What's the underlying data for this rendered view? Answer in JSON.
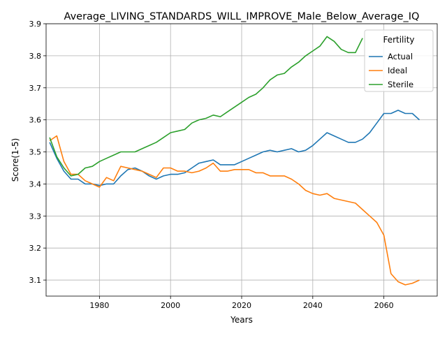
{
  "chart_data": {
    "type": "line",
    "title": "Average_LIVING_STANDARDS_WILL_IMPROVE_Male_Below_Average_IQ",
    "xlabel": "Years",
    "ylabel": "Score(1-5)",
    "xlim": [
      1965,
      2075
    ],
    "ylim": [
      3.05,
      3.9
    ],
    "xticks": [
      1980,
      2000,
      2020,
      2040,
      2060
    ],
    "yticks": [
      3.1,
      3.2,
      3.3,
      3.4,
      3.5,
      3.6,
      3.7,
      3.8,
      3.9
    ],
    "grid": true,
    "legend": {
      "title": "Fertility",
      "placement": "top-right"
    },
    "colors": {
      "Actual": "#1f77b4",
      "Ideal": "#ff7f0e",
      "Sterile": "#2ca02c"
    },
    "x": [
      1966,
      1968,
      1970,
      1972,
      1974,
      1976,
      1978,
      1980,
      1982,
      1984,
      1986,
      1988,
      1990,
      1992,
      1994,
      1996,
      1998,
      2000,
      2002,
      2004,
      2006,
      2008,
      2010,
      2012,
      2014,
      2016,
      2018,
      2020,
      2022,
      2024,
      2026,
      2028,
      2030,
      2032,
      2034,
      2036,
      2038,
      2040,
      2042,
      2044,
      2046,
      2048,
      2050,
      2052,
      2054,
      2056,
      2058,
      2060,
      2062,
      2064,
      2066,
      2068,
      2070
    ],
    "series": [
      {
        "name": "Actual",
        "values": [
          3.53,
          3.48,
          3.44,
          3.415,
          3.415,
          3.4,
          3.4,
          3.395,
          3.4,
          3.4,
          3.425,
          3.445,
          3.45,
          3.44,
          3.425,
          3.415,
          3.425,
          3.43,
          3.43,
          3.435,
          3.45,
          3.465,
          3.47,
          3.475,
          3.46,
          3.46,
          3.46,
          3.47,
          3.48,
          3.49,
          3.5,
          3.505,
          3.5,
          3.505,
          3.51,
          3.5,
          3.505,
          3.52,
          3.54,
          3.56,
          3.55,
          3.54,
          3.53,
          3.53,
          3.54,
          3.56,
          3.59,
          3.62,
          3.62,
          3.63,
          3.62,
          3.62,
          3.6
        ]
      },
      {
        "name": "Ideal",
        "values": [
          3.535,
          3.55,
          3.47,
          3.43,
          3.43,
          3.41,
          3.4,
          3.39,
          3.42,
          3.41,
          3.455,
          3.45,
          3.445,
          3.44,
          3.43,
          3.42,
          3.45,
          3.45,
          3.44,
          3.44,
          3.435,
          3.44,
          3.45,
          3.465,
          3.44,
          3.44,
          3.445,
          3.445,
          3.445,
          3.435,
          3.435,
          3.425,
          3.425,
          3.425,
          3.415,
          3.4,
          3.38,
          3.37,
          3.365,
          3.37,
          3.355,
          3.35,
          3.345,
          3.34,
          3.32,
          3.3,
          3.28,
          3.24,
          3.12,
          3.095,
          3.085,
          3.09,
          3.1
        ]
      },
      {
        "name": "Sterile",
        "values": [
          3.545,
          3.485,
          3.45,
          3.425,
          3.43,
          3.45,
          3.455,
          3.47,
          3.48,
          3.49,
          3.5,
          3.5,
          3.5,
          3.51,
          3.52,
          3.53,
          3.545,
          3.56,
          3.565,
          3.57,
          3.59,
          3.6,
          3.605,
          3.615,
          3.61,
          3.625,
          3.64,
          3.655,
          3.67,
          3.68,
          3.7,
          3.725,
          3.74,
          3.745,
          3.765,
          3.78,
          3.8,
          3.815,
          3.83,
          3.86,
          3.845,
          3.82,
          3.81,
          3.81,
          3.855,
          null,
          null,
          null,
          null,
          null,
          null,
          null,
          null
        ]
      }
    ]
  }
}
